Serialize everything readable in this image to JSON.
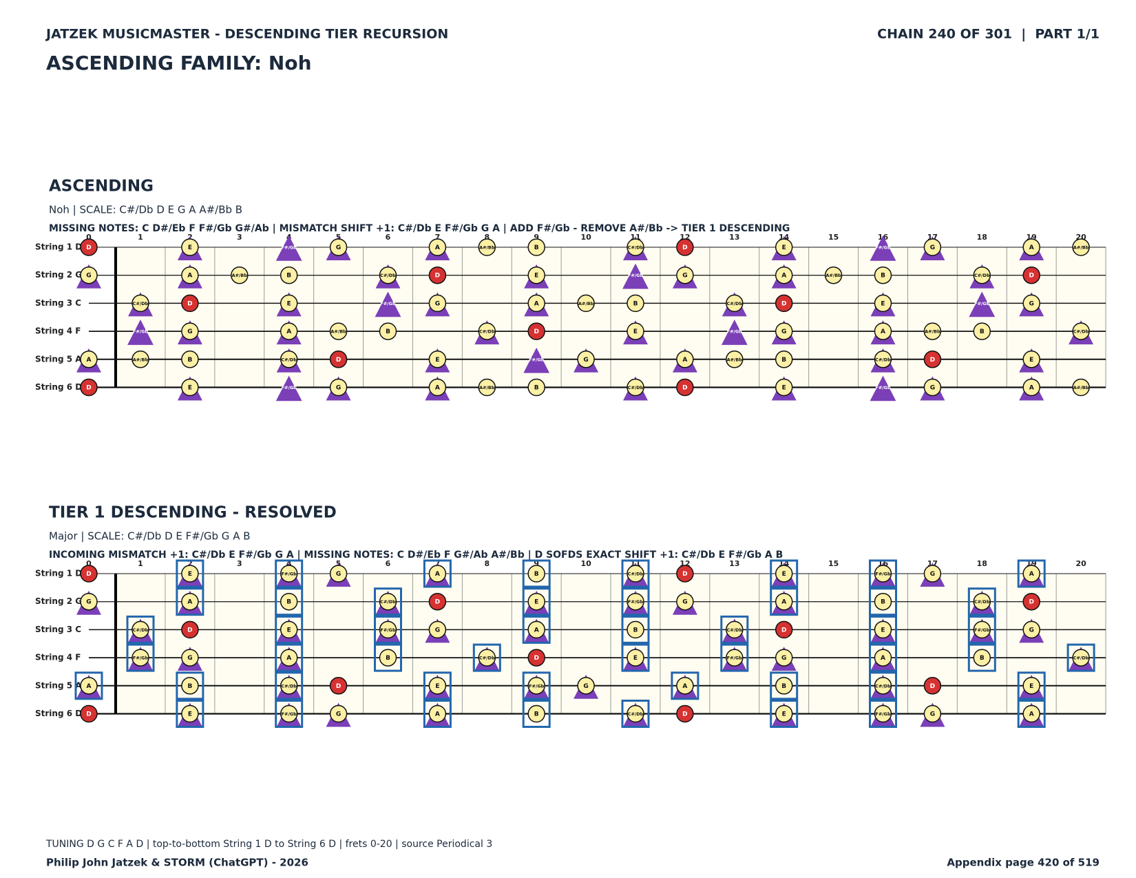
{
  "header": {
    "left": "JATZEK MUSICMASTER - DESCENDING TIER RECURSION",
    "right": "CHAIN 240 OF 301  |  PART 1/1",
    "title": "ASCENDING FAMILY: Noh"
  },
  "diagrams": [
    {
      "title": "ASCENDING",
      "subtitle": "Noh  |  SCALE: C#/Db D E G A A#/Bb B",
      "info": "MISSING NOTES: C D#/Eb F F#/Gb G#/Ab  |  MISMATCH SHIFT +1: C#/Db E F#/Gb G A  |  ADD F#/Gb - REMOVE A#/Bb -> TIER 1 DESCENDING",
      "frets": [
        0,
        1,
        2,
        3,
        4,
        5,
        6,
        7,
        8,
        9,
        10,
        11,
        12,
        13,
        14,
        15,
        16,
        17,
        18,
        19,
        20
      ],
      "root": "D",
      "root_color": "#d63232",
      "note_color": "#fbf0a6",
      "triangle_color": "#7b3fb8",
      "box_color": "#2366ad",
      "triangle_notes": [
        "C#/Db",
        "E",
        "F#/Gb",
        "G",
        "A"
      ],
      "triangle_only_notes": [
        "F#/Gb"
      ],
      "box_notes": [],
      "strings": [
        {
          "label": "String 1 D",
          "notes": [
            "D",
            null,
            "E",
            null,
            "F#/Gb",
            "G",
            null,
            "A",
            "A#/Bb",
            "B",
            null,
            "C#/Db",
            "D",
            null,
            "E",
            null,
            "F#/Gb",
            "G",
            null,
            "A",
            "A#/Bb"
          ]
        },
        {
          "label": "String 2 G",
          "notes": [
            "G",
            null,
            "A",
            "A#/Bb",
            "B",
            null,
            "C#/Db",
            "D",
            null,
            "E",
            null,
            "F#/Gb",
            "G",
            null,
            "A",
            "A#/Bb",
            "B",
            null,
            "C#/Db",
            "D",
            null
          ]
        },
        {
          "label": "String 3 C",
          "notes": [
            null,
            "C#/Db",
            "D",
            null,
            "E",
            null,
            "F#/Gb",
            "G",
            null,
            "A",
            "A#/Bb",
            "B",
            null,
            "C#/Db",
            "D",
            null,
            "E",
            null,
            "F#/Gb",
            "G",
            null
          ]
        },
        {
          "label": "String 4 F",
          "notes": [
            null,
            "F#/Gb",
            "G",
            null,
            "A",
            "A#/Bb",
            "B",
            null,
            "C#/Db",
            "D",
            null,
            "E",
            null,
            "F#/Gb",
            "G",
            null,
            "A",
            "A#/Bb",
            "B",
            null,
            "C#/Db"
          ]
        },
        {
          "label": "String 5 A",
          "notes": [
            "A",
            "A#/Bb",
            "B",
            null,
            "C#/Db",
            "D",
            null,
            "E",
            null,
            "F#/Gb",
            "G",
            null,
            "A",
            "A#/Bb",
            "B",
            null,
            "C#/Db",
            "D",
            null,
            "E",
            null
          ]
        },
        {
          "label": "String 6 D",
          "notes": [
            "D",
            null,
            "E",
            null,
            "F#/Gb",
            "G",
            null,
            "A",
            "A#/Bb",
            "B",
            null,
            "C#/Db",
            "D",
            null,
            "E",
            null,
            "F#/Gb",
            "G",
            null,
            "A",
            "A#/Bb"
          ]
        }
      ]
    },
    {
      "title": "TIER 1 DESCENDING - RESOLVED",
      "subtitle": "Major  |  SCALE: C#/Db D E F#/Gb G A B",
      "info": "INCOMING MISMATCH +1: C#/Db E F#/Gb G A  |  MISSING NOTES: C D#/Eb F G#/Ab A#/Bb  |  D SOFDS EXACT SHIFT +1: C#/Db E F#/Gb A B",
      "frets": [
        0,
        1,
        2,
        3,
        4,
        5,
        6,
        7,
        8,
        9,
        10,
        11,
        12,
        13,
        14,
        15,
        16,
        17,
        18,
        19,
        20
      ],
      "root": "D",
      "root_color": "#d63232",
      "note_color": "#fbf0a6",
      "triangle_color": "#7b3fb8",
      "box_color": "#2366ad",
      "triangle_notes": [
        "C#/Db",
        "E",
        "F#/Gb",
        "G",
        "A"
      ],
      "box_notes": [
        "C#/Db",
        "E",
        "F#/Gb",
        "A",
        "B"
      ],
      "strings": [
        {
          "label": "String 1 D",
          "notes": [
            "D",
            null,
            "E",
            null,
            "F#/Gb",
            "G",
            null,
            "A",
            null,
            "B",
            null,
            "C#/Db",
            "D",
            null,
            "E",
            null,
            "F#/Gb",
            "G",
            null,
            "A",
            null
          ]
        },
        {
          "label": "String 2 G",
          "notes": [
            "G",
            null,
            "A",
            null,
            "B",
            null,
            "C#/Db",
            "D",
            null,
            "E",
            null,
            "F#/Gb",
            "G",
            null,
            "A",
            null,
            "B",
            null,
            "C#/Db",
            "D",
            null
          ]
        },
        {
          "label": "String 3 C",
          "notes": [
            null,
            "C#/Db",
            "D",
            null,
            "E",
            null,
            "F#/Gb",
            "G",
            null,
            "A",
            null,
            "B",
            null,
            "C#/Db",
            "D",
            null,
            "E",
            null,
            "F#/Gb",
            "G",
            null
          ]
        },
        {
          "label": "String 4 F",
          "notes": [
            null,
            "F#/Gb",
            "G",
            null,
            "A",
            null,
            "B",
            null,
            "C#/Db",
            "D",
            null,
            "E",
            null,
            "F#/Gb",
            "G",
            null,
            "A",
            null,
            "B",
            null,
            "C#/Db"
          ]
        },
        {
          "label": "String 5 A",
          "notes": [
            "A",
            null,
            "B",
            null,
            "C#/Db",
            "D",
            null,
            "E",
            null,
            "F#/Gb",
            "G",
            null,
            "A",
            null,
            "B",
            null,
            "C#/Db",
            "D",
            null,
            "E",
            null
          ]
        },
        {
          "label": "String 6 D",
          "notes": [
            "D",
            null,
            "E",
            null,
            "F#/Gb",
            "G",
            null,
            "A",
            null,
            "B",
            null,
            "C#/Db",
            "D",
            null,
            "E",
            null,
            "F#/Gb",
            "G",
            null,
            "A",
            null
          ]
        }
      ]
    }
  ],
  "footer": {
    "note": "TUNING D G C F A D | top-to-bottom String 1 D to String 6 D | frets 0-20 | source Periodical 3",
    "credit": "Philip John Jatzek & STORM (ChatGPT) - 2026",
    "page": "Appendix page 420 of 519"
  }
}
